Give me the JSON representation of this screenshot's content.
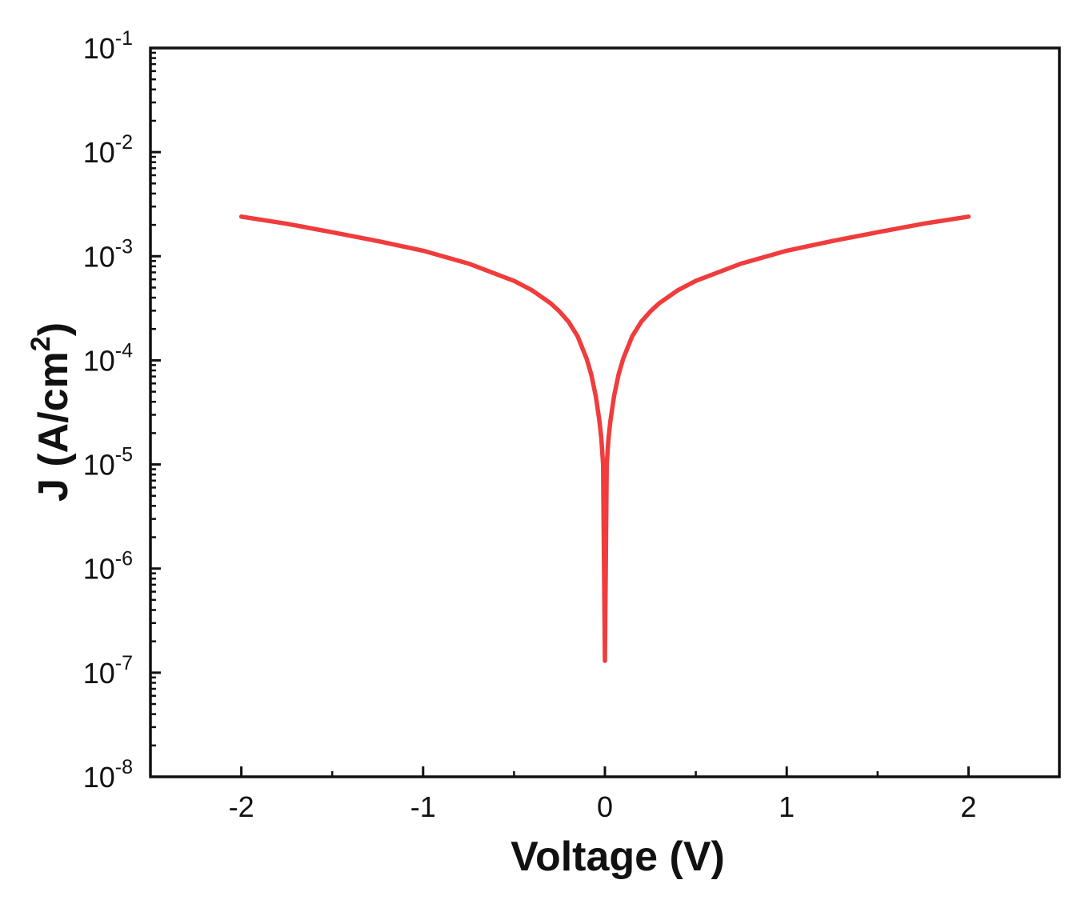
{
  "chart_data": {
    "type": "line",
    "title": "",
    "xlabel": "Voltage (V)",
    "ylabel": {
      "main": "J (A/cm",
      "sup": "2",
      "close": ")"
    },
    "xlim": [
      -2.5,
      2.5
    ],
    "ylim": [
      1e-08,
      0.1
    ],
    "y_scale": "log",
    "x_ticks": [
      {
        "value": -2,
        "label": "-2"
      },
      {
        "value": -1,
        "label": "-1"
      },
      {
        "value": 0,
        "label": "0"
      },
      {
        "value": 1,
        "label": "1"
      },
      {
        "value": 2,
        "label": "2"
      }
    ],
    "y_ticks": [
      {
        "value": 0.1,
        "base": "10",
        "exp": "-1"
      },
      {
        "value": 0.01,
        "base": "10",
        "exp": "-2"
      },
      {
        "value": 0.001,
        "base": "10",
        "exp": "-3"
      },
      {
        "value": 0.0001,
        "base": "10",
        "exp": "-4"
      },
      {
        "value": 1e-05,
        "base": "10",
        "exp": "-5"
      },
      {
        "value": 1e-06,
        "base": "10",
        "exp": "-6"
      },
      {
        "value": 1e-07,
        "base": "10",
        "exp": "-7"
      },
      {
        "value": 1e-08,
        "base": "10",
        "exp": "-8"
      }
    ],
    "grid": false,
    "series": [
      {
        "color": "#f03c3c",
        "x": [
          -2.0,
          -1.75,
          -1.5,
          -1.25,
          -1.0,
          -0.75,
          -0.5,
          -0.4,
          -0.3,
          -0.25,
          -0.2,
          -0.15,
          -0.1,
          -0.075,
          -0.05,
          -0.03,
          -0.02,
          -0.01,
          0.0,
          0.01,
          0.02,
          0.03,
          0.05,
          0.075,
          0.1,
          0.15,
          0.2,
          0.25,
          0.3,
          0.4,
          0.5,
          0.75,
          1.0,
          1.25,
          1.5,
          1.75,
          2.0
        ],
        "y": [
          0.0024,
          0.00205,
          0.0017,
          0.0014,
          0.00113,
          0.00085,
          0.00058,
          0.00047,
          0.000355,
          0.000295,
          0.000235,
          0.00017,
          0.000103,
          7.3e-05,
          4.5e-05,
          2.6e-05,
          1.8e-05,
          1e-05,
          1.3e-07,
          1e-05,
          1.8e-05,
          2.6e-05,
          4.5e-05,
          7.3e-05,
          0.000103,
          0.00017,
          0.000235,
          0.000295,
          0.000355,
          0.00047,
          0.00058,
          0.00085,
          0.00113,
          0.0014,
          0.0017,
          0.00205,
          0.0024
        ]
      }
    ]
  }
}
